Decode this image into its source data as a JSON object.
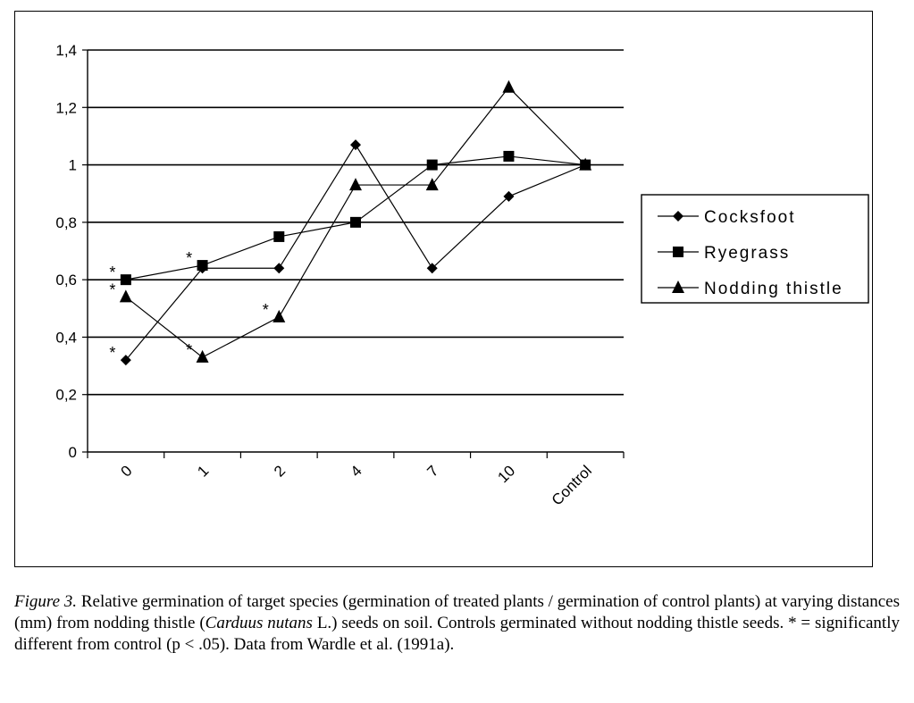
{
  "chart_data": {
    "type": "line",
    "categories": [
      "0",
      "1",
      "2",
      "4",
      "7",
      "10",
      "Control"
    ],
    "ylim": [
      0,
      1.4
    ],
    "yticks": [
      "0",
      "0,2",
      "0,4",
      "0,6",
      "0,8",
      "1",
      "1,2",
      "1,4"
    ],
    "ytick_values": [
      0,
      0.2,
      0.4,
      0.6,
      0.8,
      1.0,
      1.2,
      1.4
    ],
    "grid": true,
    "legend_position": "right",
    "series": [
      {
        "name": "Cocksfoot",
        "marker": "diamond",
        "values": [
          0.32,
          0.64,
          0.64,
          1.07,
          0.64,
          0.89,
          1.0
        ]
      },
      {
        "name": "Ryegrass",
        "marker": "square",
        "values": [
          0.6,
          0.65,
          0.75,
          0.8,
          1.0,
          1.03,
          1.0
        ]
      },
      {
        "name": "Nodding thistle",
        "marker": "triangle",
        "values": [
          0.54,
          0.33,
          0.47,
          0.93,
          0.93,
          1.27,
          1.0
        ]
      }
    ],
    "annotations": [
      {
        "text": "*",
        "category": "0",
        "value": 0.32
      },
      {
        "text": "*",
        "category": "0",
        "value": 0.6
      },
      {
        "text": "*",
        "category": "0",
        "value": 0.54
      },
      {
        "text": "*",
        "category": "1",
        "value": 0.65
      },
      {
        "text": "*",
        "category": "1",
        "value": 0.33
      },
      {
        "text": "*",
        "category": "2",
        "value": 0.47
      }
    ]
  },
  "caption": {
    "label": "Figure 3.",
    "text_before": " Relative germination of target species (germination of treated plants / germination of control plants) at varying distances (mm) from nodding thistle (",
    "species": "Carduus nutans",
    "text_after": " L.) seeds on soil. Controls germinated without nodding thistle seeds. * = significantly different from control (p < .05). Data from Wardle et al. (1991a)."
  }
}
